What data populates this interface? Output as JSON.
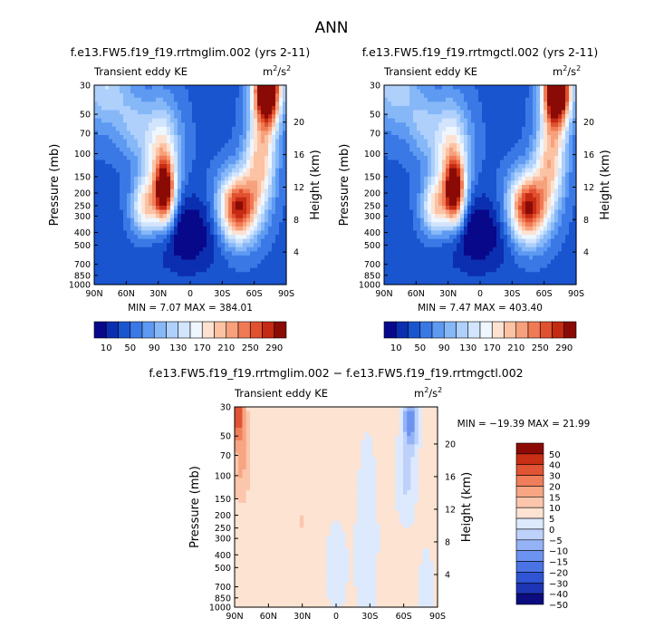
{
  "page_title": "ANN",
  "colors": {
    "scale_full": [
      "#08088a",
      "#0b2fb0",
      "#1a55d0",
      "#3a78e6",
      "#5e9af2",
      "#86b8f8",
      "#aed0fb",
      "#d2e5fd",
      "#eef6fe",
      "#fde2d2",
      "#fbc2a4",
      "#f7a17c",
      "#f07a55",
      "#e0512f",
      "#c52a12",
      "#8a0b06"
    ],
    "scale_diff": [
      "#0c0c80",
      "#1e35b4",
      "#2f55d4",
      "#4a73e6",
      "#6d93f0",
      "#94b3f6",
      "#bdd1fa",
      "#dde9fd",
      "#fde3d2",
      "#fbc6ab",
      "#f7a583",
      "#f07e5a",
      "#e15433",
      "#c82e14",
      "#8c0a05"
    ]
  },
  "chart_data": [
    {
      "type": "heatmap",
      "id": "panel-left",
      "title": "f.e13.FW5.f19_f19.rrtmglim.002 (yrs 2-11)",
      "left_label": "Transient eddy KE",
      "units_base": "m",
      "units_exp": "2",
      "units_den": "/s",
      "units_den_exp": "2",
      "xlabel": "",
      "ylabel": "Pressure (mb)",
      "ylabel_right": "Height (km)",
      "x_ticks": [
        "90N",
        "60N",
        "30N",
        "0",
        "30S",
        "60S",
        "90S"
      ],
      "x_range": [
        90,
        -90
      ],
      "y_ticks": [
        "30",
        "50",
        "70",
        "100",
        "150",
        "200",
        "250",
        "300",
        "400",
        "500",
        "700",
        "850",
        "1000"
      ],
      "y_tick_values": [
        30,
        50,
        70,
        100,
        150,
        200,
        250,
        300,
        400,
        500,
        700,
        850,
        1000
      ],
      "y_range": [
        30,
        1000
      ],
      "height_ticks": [
        "4",
        "8",
        "12",
        "16",
        "20"
      ],
      "height_tick_values": [
        4,
        8,
        12,
        16,
        20
      ],
      "min_label": "MIN =",
      "min_value": "7.07",
      "max_label": "MAX =",
      "max_value": "384.01",
      "colorbar_labels": [
        "10",
        "50",
        "90",
        "130",
        "170",
        "210",
        "250",
        "290"
      ],
      "levels": [
        10,
        30,
        50,
        70,
        90,
        110,
        130,
        150,
        170,
        190,
        210,
        230,
        250,
        270,
        290
      ],
      "blobs": [
        {
          "lat": 24,
          "p": 200,
          "amp": 260,
          "slat": 7,
          "sp": 0.42
        },
        {
          "lat": 42,
          "p": 260,
          "amp": 140,
          "slat": 9,
          "sp": 0.35
        },
        {
          "lat": -45,
          "p": 260,
          "amp": 250,
          "slat": 13,
          "sp": 0.42
        },
        {
          "lat": -72,
          "p": 32,
          "amp": 360,
          "slat": 9,
          "sp": 0.45
        },
        {
          "lat": -66,
          "p": 110,
          "amp": 150,
          "slat": 10,
          "sp": 0.55
        },
        {
          "lat": 80,
          "p": 30,
          "amp": 85,
          "slat": 16,
          "sp": 0.55
        },
        {
          "lat": 28,
          "p": 90,
          "amp": 120,
          "slat": 13,
          "sp": 0.6
        },
        {
          "lat": 4,
          "p": 400,
          "amp": -60,
          "slat": 24,
          "sp": 0.45
        },
        {
          "lat": 55,
          "p": 60,
          "amp": 50,
          "slat": 10,
          "sp": 0.4
        }
      ],
      "base_value": 45
    },
    {
      "type": "heatmap",
      "id": "panel-right",
      "title": "f.e13.FW5.f19_f19.rrtmgctl.002 (yrs 2-11)",
      "left_label": "Transient eddy KE",
      "units_base": "m",
      "units_exp": "2",
      "units_den": "/s",
      "units_den_exp": "2",
      "xlabel": "",
      "ylabel": "Pressure (mb)",
      "ylabel_right": "Height (km)",
      "x_ticks": [
        "90N",
        "60N",
        "30N",
        "0",
        "30S",
        "60S",
        "90S"
      ],
      "x_range": [
        90,
        -90
      ],
      "y_ticks": [
        "30",
        "50",
        "70",
        "100",
        "150",
        "200",
        "250",
        "300",
        "400",
        "500",
        "700",
        "850",
        "1000"
      ],
      "y_tick_values": [
        30,
        50,
        70,
        100,
        150,
        200,
        250,
        300,
        400,
        500,
        700,
        850,
        1000
      ],
      "y_range": [
        30,
        1000
      ],
      "height_ticks": [
        "4",
        "8",
        "12",
        "16",
        "20"
      ],
      "height_tick_values": [
        4,
        8,
        12,
        16,
        20
      ],
      "min_label": "MIN =",
      "min_value": "7.47",
      "max_label": "MAX =",
      "max_value": "403.40",
      "colorbar_labels": [
        "10",
        "50",
        "90",
        "130",
        "170",
        "210",
        "250",
        "290"
      ],
      "levels": [
        10,
        30,
        50,
        70,
        90,
        110,
        130,
        150,
        170,
        190,
        210,
        230,
        250,
        270,
        290
      ],
      "blobs": [
        {
          "lat": 24,
          "p": 200,
          "amp": 262,
          "slat": 7,
          "sp": 0.42
        },
        {
          "lat": 42,
          "p": 260,
          "amp": 140,
          "slat": 9,
          "sp": 0.35
        },
        {
          "lat": -45,
          "p": 260,
          "amp": 255,
          "slat": 13,
          "sp": 0.42
        },
        {
          "lat": -72,
          "p": 32,
          "amp": 380,
          "slat": 9,
          "sp": 0.45
        },
        {
          "lat": -66,
          "p": 110,
          "amp": 150,
          "slat": 10,
          "sp": 0.55
        },
        {
          "lat": 80,
          "p": 30,
          "amp": 80,
          "slat": 16,
          "sp": 0.55
        },
        {
          "lat": 28,
          "p": 90,
          "amp": 120,
          "slat": 13,
          "sp": 0.6
        },
        {
          "lat": 4,
          "p": 400,
          "amp": -60,
          "slat": 24,
          "sp": 0.45
        },
        {
          "lat": 55,
          "p": 60,
          "amp": 50,
          "slat": 10,
          "sp": 0.4
        }
      ],
      "base_value": 45
    },
    {
      "type": "heatmap",
      "id": "panel-diff",
      "title": "f.e13.FW5.f19_f19.rrtmglim.002 − f.e13.FW5.f19_f19.rrtmgctl.002",
      "left_label": "Transient eddy KE",
      "units_base": "m",
      "units_exp": "2",
      "units_den": "/s",
      "units_den_exp": "2",
      "xlabel": "",
      "ylabel": "Pressure (mb)",
      "ylabel_right": "Height (km)",
      "x_ticks": [
        "90N",
        "60N",
        "30N",
        "0",
        "30S",
        "60S",
        "90S"
      ],
      "x_range": [
        90,
        -90
      ],
      "y_ticks": [
        "30",
        "50",
        "70",
        "100",
        "150",
        "200",
        "250",
        "300",
        "400",
        "500",
        "700",
        "850",
        "1000"
      ],
      "y_tick_values": [
        30,
        50,
        70,
        100,
        150,
        200,
        250,
        300,
        400,
        500,
        700,
        850,
        1000
      ],
      "y_range": [
        30,
        1000
      ],
      "height_ticks": [
        "4",
        "8",
        "12",
        "16",
        "20"
      ],
      "height_tick_values": [
        4,
        8,
        12,
        16,
        20
      ],
      "min_label": "MIN =",
      "min_value": "−19.39",
      "max_label": "MAX =",
      "max_value": "21.99",
      "colorbar_labels": [
        "50",
        "40",
        "30",
        "20",
        "15",
        "10",
        "5",
        "0",
        "−5",
        "−10",
        "−15",
        "−20",
        "−30",
        "−40",
        "−50"
      ],
      "levels": [
        -50,
        -40,
        -30,
        -20,
        -15,
        -10,
        -5,
        0,
        5,
        10,
        15,
        20,
        30,
        40,
        50
      ],
      "blobs": [
        {
          "lat": 87,
          "p": 32,
          "amp": 24,
          "slat": 4,
          "sp": 0.35
        },
        {
          "lat": 84,
          "p": 80,
          "amp": 9,
          "slat": 5,
          "sp": 0.5
        },
        {
          "lat": -66,
          "p": 38,
          "amp": -20,
          "slat": 5,
          "sp": 0.35
        },
        {
          "lat": -62,
          "p": 110,
          "amp": -8,
          "slat": 6,
          "sp": 0.5
        },
        {
          "lat": -28,
          "p": 300,
          "amp": -4,
          "slat": 8,
          "sp": 1.6
        },
        {
          "lat": 0,
          "p": 500,
          "amp": -3,
          "slat": 10,
          "sp": 0.9
        },
        {
          "lat": -80,
          "p": 700,
          "amp": -3,
          "slat": 7,
          "sp": 0.8
        },
        {
          "lat": 30,
          "p": 220,
          "amp": 5,
          "slat": 2,
          "sp": 0.1
        }
      ],
      "base_value": 2
    }
  ]
}
